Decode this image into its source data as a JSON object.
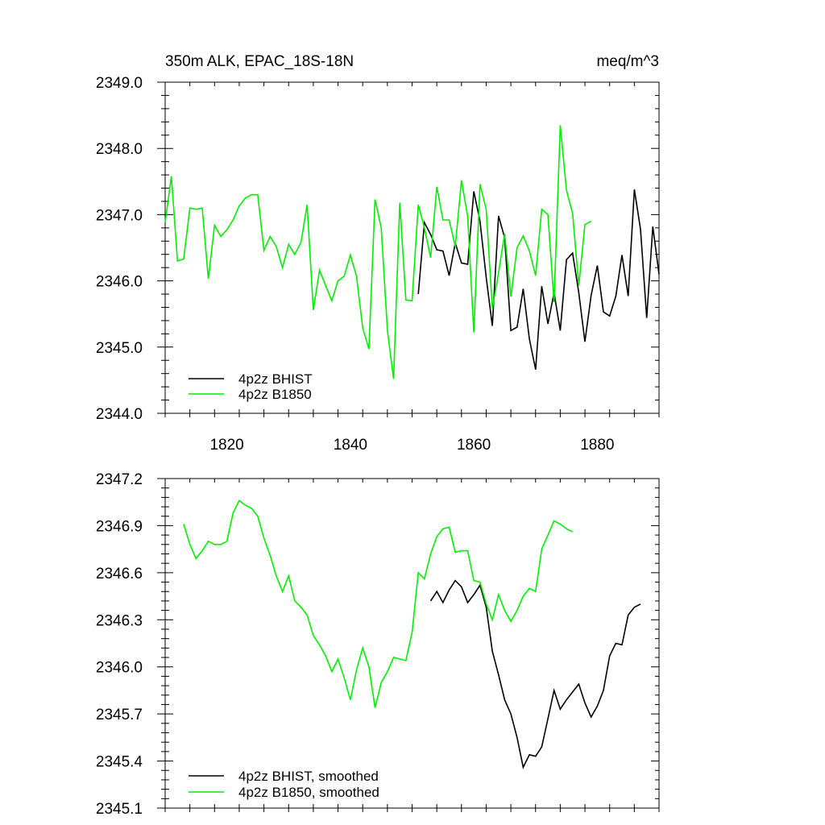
{
  "chart_data": [
    {
      "type": "line",
      "title_left": "350m ALK, EPAC_18S-18N",
      "title_right": "meq/m^3",
      "xlim": [
        1810,
        1890
      ],
      "ylim": [
        2344.0,
        2349.0
      ],
      "xticks": [
        1820,
        1840,
        1860,
        1880
      ],
      "yticks": [
        2344.0,
        2345.0,
        2346.0,
        2347.0,
        2348.0,
        2349.0
      ],
      "ytick_labels": [
        "2344.0",
        "2345.0",
        "2346.0",
        "2347.0",
        "2348.0",
        "2349.0"
      ],
      "xtick_labels": [
        "1820",
        "1840",
        "1860",
        "1880"
      ],
      "grid": false,
      "legend_position": "bottom-left",
      "series": [
        {
          "name": "4p2z BHIST",
          "color": "#000000",
          "x": [
            1851,
            1852,
            1853,
            1854,
            1855,
            1856,
            1857,
            1858,
            1859,
            1860,
            1861,
            1862,
            1863,
            1864,
            1865,
            1866,
            1867,
            1868,
            1869,
            1870,
            1871,
            1872,
            1873,
            1874,
            1875,
            1876,
            1877,
            1878,
            1879,
            1880,
            1881,
            1882,
            1883,
            1884,
            1885,
            1886,
            1887,
            1888,
            1889,
            1890
          ],
          "y": [
            2345.8,
            2346.88,
            2346.7,
            2346.47,
            2346.45,
            2346.08,
            2346.57,
            2346.27,
            2346.25,
            2347.35,
            2346.9,
            2346.05,
            2345.32,
            2346.98,
            2346.65,
            2345.25,
            2345.3,
            2345.88,
            2345.12,
            2344.66,
            2345.92,
            2345.35,
            2345.82,
            2345.25,
            2346.32,
            2346.42,
            2345.82,
            2345.08,
            2345.78,
            2346.23,
            2345.53,
            2345.47,
            2345.77,
            2346.39,
            2345.77,
            2347.38,
            2346.78,
            2345.44,
            2346.82,
            2346.1
          ]
        },
        {
          "name": "4p2z B1850",
          "color": "#00ee00",
          "x": [
            1810,
            1811,
            1812,
            1813,
            1814,
            1815,
            1816,
            1817,
            1818,
            1819,
            1820,
            1821,
            1822,
            1823,
            1824,
            1825,
            1826,
            1827,
            1828,
            1829,
            1830,
            1831,
            1832,
            1833,
            1834,
            1835,
            1836,
            1837,
            1838,
            1839,
            1840,
            1841,
            1842,
            1843,
            1844,
            1845,
            1846,
            1847,
            1848,
            1849,
            1850,
            1851,
            1852,
            1853,
            1854,
            1855,
            1856,
            1857,
            1858,
            1859,
            1860,
            1861,
            1862,
            1863,
            1864,
            1865,
            1866,
            1867,
            1868,
            1869,
            1870,
            1871,
            1872,
            1873,
            1874,
            1875,
            1876,
            1877,
            1878,
            1879
          ],
          "y": [
            2346.88,
            2347.58,
            2346.3,
            2346.33,
            2347.1,
            2347.08,
            2347.1,
            2346.03,
            2346.84,
            2346.67,
            2346.77,
            2346.92,
            2347.13,
            2347.25,
            2347.3,
            2347.3,
            2346.46,
            2346.67,
            2346.52,
            2346.2,
            2346.55,
            2346.4,
            2346.58,
            2347.15,
            2345.56,
            2346.16,
            2345.93,
            2345.7,
            2346.0,
            2346.07,
            2346.39,
            2346.07,
            2345.29,
            2344.97,
            2347.23,
            2346.8,
            2345.25,
            2344.52,
            2347.18,
            2345.71,
            2345.7,
            2347.15,
            2346.8,
            2346.35,
            2347.42,
            2346.92,
            2346.92,
            2346.52,
            2347.52,
            2346.97,
            2345.22,
            2347.46,
            2347.08,
            2345.58,
            2346.12,
            2346.71,
            2345.76,
            2346.5,
            2346.68,
            2346.45,
            2346.08,
            2347.08,
            2347.0,
            2345.68,
            2348.35,
            2347.37,
            2347.02,
            2345.93,
            2346.85,
            2346.9
          ]
        }
      ]
    },
    {
      "type": "line",
      "xlim": [
        1810,
        1890
      ],
      "ylim": [
        2345.1,
        2347.2
      ],
      "xticks": [
        1820,
        1840,
        1860,
        1880
      ],
      "yticks": [
        2345.1,
        2345.4,
        2345.7,
        2346.0,
        2346.3,
        2346.6,
        2346.9,
        2347.2
      ],
      "ytick_labels": [
        "2345.1",
        "2345.4",
        "2345.7",
        "2346.0",
        "2346.3",
        "2346.6",
        "2346.9",
        "2347.2"
      ],
      "grid": false,
      "legend_position": "bottom-left",
      "series": [
        {
          "name": "4p2z BHIST, smoothed",
          "color": "#000000",
          "x": [
            1853,
            1854,
            1855,
            1856,
            1857,
            1858,
            1859,
            1860,
            1861,
            1862,
            1863,
            1864,
            1865,
            1866,
            1867,
            1868,
            1869,
            1870,
            1871,
            1872,
            1873,
            1874,
            1875,
            1876,
            1877,
            1878,
            1879,
            1880,
            1881,
            1882,
            1883,
            1884,
            1885,
            1886,
            1887
          ],
          "y": [
            2346.42,
            2346.48,
            2346.41,
            2346.49,
            2346.55,
            2346.51,
            2346.41,
            2346.46,
            2346.52,
            2346.38,
            2346.1,
            2345.95,
            2345.79,
            2345.7,
            2345.55,
            2345.36,
            2345.44,
            2345.43,
            2345.49,
            2345.67,
            2345.85,
            2345.73,
            2345.79,
            2345.84,
            2345.89,
            2345.77,
            2345.68,
            2345.75,
            2345.85,
            2346.07,
            2346.15,
            2346.14,
            2346.33,
            2346.38,
            2346.4
          ]
        },
        {
          "name": "4p2z B1850, smoothed",
          "color": "#00ee00",
          "x": [
            1813,
            1814,
            1815,
            1816,
            1817,
            1818,
            1819,
            1820,
            1821,
            1822,
            1823,
            1824,
            1825,
            1826,
            1827,
            1828,
            1829,
            1830,
            1831,
            1832,
            1833,
            1834,
            1835,
            1836,
            1837,
            1838,
            1839,
            1840,
            1841,
            1842,
            1843,
            1844,
            1845,
            1846,
            1847,
            1848,
            1849,
            1850,
            1851,
            1852,
            1853,
            1854,
            1855,
            1856,
            1857,
            1858,
            1859,
            1860,
            1861,
            1862,
            1863,
            1864,
            1865,
            1866,
            1867,
            1868,
            1869,
            1870,
            1871,
            1872,
            1873,
            1874,
            1875,
            1876
          ],
          "y": [
            2346.91,
            2346.78,
            2346.69,
            2346.74,
            2346.8,
            2346.78,
            2346.78,
            2346.8,
            2346.98,
            2347.06,
            2347.03,
            2347.01,
            2346.96,
            2346.82,
            2346.71,
            2346.58,
            2346.48,
            2346.58,
            2346.42,
            2346.38,
            2346.33,
            2346.2,
            2346.14,
            2346.07,
            2345.97,
            2346.05,
            2345.93,
            2345.79,
            2345.98,
            2346.12,
            2346.0,
            2345.74,
            2345.9,
            2345.97,
            2346.06,
            2346.05,
            2346.04,
            2346.22,
            2346.6,
            2346.56,
            2346.72,
            2346.83,
            2346.88,
            2346.89,
            2346.73,
            2346.74,
            2346.74,
            2346.55,
            2346.54,
            2346.4,
            2346.3,
            2346.46,
            2346.36,
            2346.29,
            2346.36,
            2346.45,
            2346.5,
            2346.48,
            2346.75,
            2346.84,
            2346.93,
            2346.91,
            2346.88,
            2346.86
          ]
        }
      ]
    }
  ]
}
